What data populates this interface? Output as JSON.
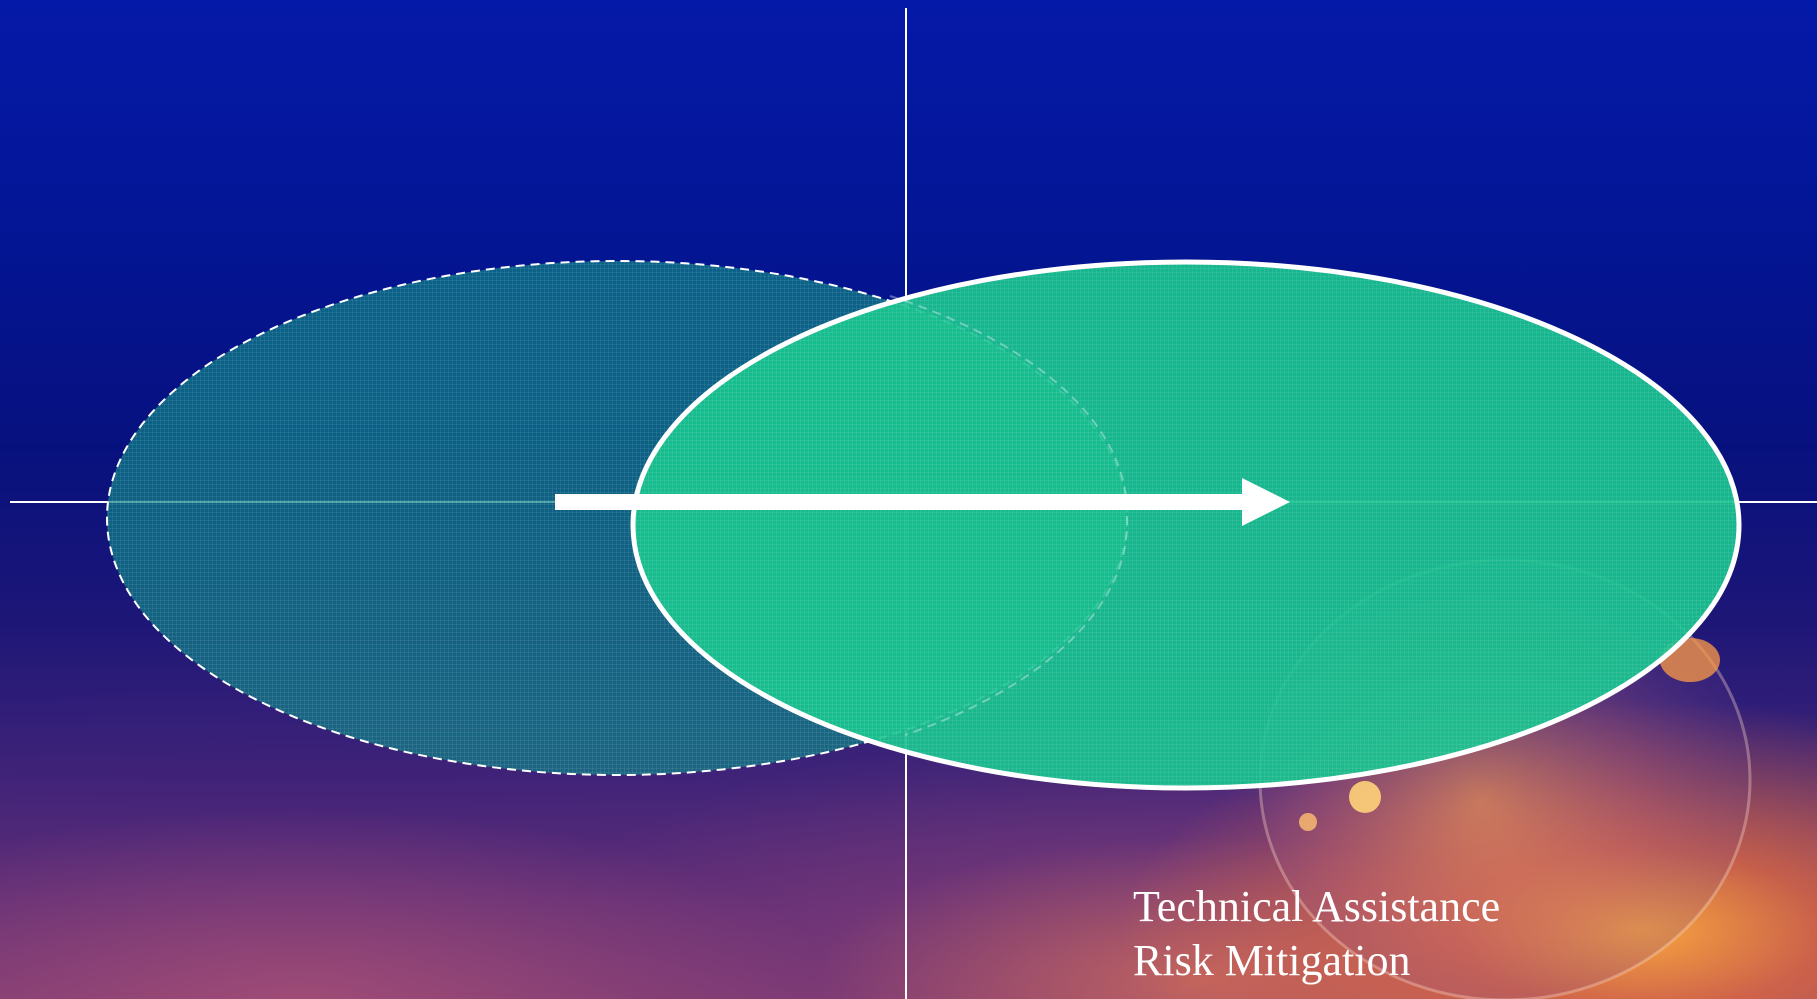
{
  "slide": {
    "text_lines": [
      "Technical Assistance",
      "Risk Mitigation"
    ]
  },
  "colors": {
    "ellipse_from_fill": "#0f7f86",
    "ellipse_to_fill": "#19c38f",
    "outline": "#ffffff",
    "axis": "#ffffff",
    "arrow": "#ffffff",
    "globe_glow": "#ff9a3c"
  },
  "icons": [
    "right-arrow-icon",
    "globe-icon"
  ]
}
